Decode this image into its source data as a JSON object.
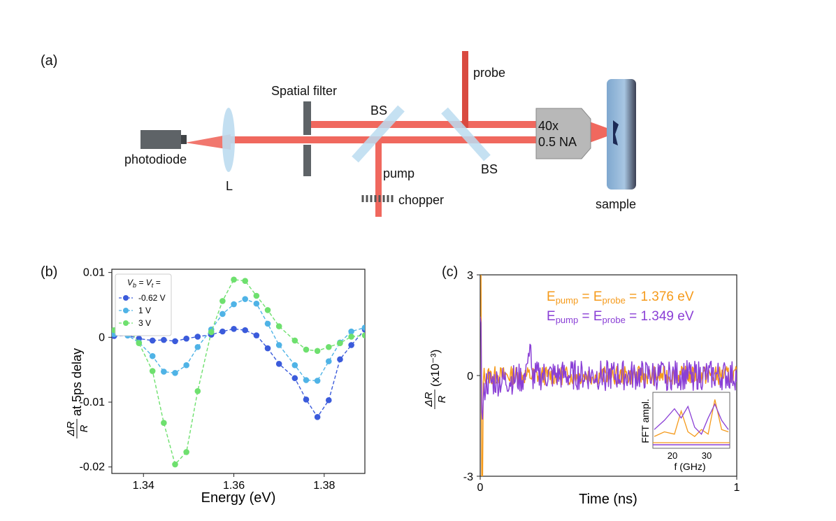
{
  "panel_a": {
    "label": "(a)",
    "photodiode": "photodiode",
    "lens": "L",
    "spatial_filter": "Spatial filter",
    "bs1": "BS",
    "bs2": "BS",
    "pump": "pump",
    "probe": "probe",
    "chopper": "chopper",
    "objective_line1": "40x",
    "objective_line2": "0.5 NA",
    "sample": "sample"
  },
  "colors": {
    "beam": "#f0685e",
    "beam_dark": "#d94a40",
    "optic": "#bcdcf0",
    "block": "#5e6367",
    "objective": "#b8b8b8",
    "orange": "#f59a1a",
    "purple": "#8a3fd6"
  },
  "chart_data": [
    {
      "panel": "(b)",
      "type": "line",
      "xlabel": "Energy (eV)",
      "ylabel_frac_num": "ΔR",
      "ylabel_frac_den": "R",
      "ylabel_rest": "at 5ps delay",
      "xlim": [
        1.333,
        1.389
      ],
      "ylim": [
        -0.021,
        0.0105
      ],
      "xticks": [
        1.34,
        1.36,
        1.38
      ],
      "xtick_labels": [
        "1.34",
        "1.36",
        "1.38"
      ],
      "yticks": [
        0.01,
        0,
        -0.01,
        -0.02
      ],
      "ytick_labels": [
        "0.01",
        "0",
        "-0.01",
        "-0.02"
      ],
      "legend_title": "V_b = V_t =",
      "legend_placement": "top-left",
      "x": [
        1.3335,
        1.3365,
        1.339,
        1.342,
        1.3445,
        1.347,
        1.3495,
        1.352,
        1.355,
        1.3575,
        1.36,
        1.3625,
        1.365,
        1.3675,
        1.37,
        1.3735,
        1.376,
        1.3785,
        1.381,
        1.3835,
        1.386,
        1.389
      ],
      "series": [
        {
          "name": "-0.62 V",
          "color": "#3b5bdb",
          "values": [
            0.0002,
            0.0003,
            -0.0002,
            -0.0005,
            -0.0004,
            -0.0006,
            -0.0002,
            0.0001,
            0.0004,
            0.0009,
            0.0013,
            0.0011,
            0.0003,
            -0.0017,
            -0.0041,
            -0.0063,
            -0.0096,
            -0.0123,
            -0.0097,
            -0.0034,
            -0.0012,
            0.0012
          ]
        },
        {
          "name": "1 V",
          "color": "#4fb3e6",
          "values": [
            0.0005,
            0.0003,
            -0.0008,
            -0.0029,
            -0.0053,
            -0.0055,
            -0.0043,
            -0.0015,
            0.0012,
            0.0036,
            0.0051,
            0.0059,
            0.0052,
            0.0021,
            -0.0012,
            -0.0043,
            -0.0066,
            -0.0067,
            -0.0037,
            -0.0008,
            0.0009,
            0.0015
          ]
        },
        {
          "name": "3 V",
          "color": "#6ee06e",
          "values": [
            0.0011,
            0.0015,
            -0.0009,
            -0.0052,
            -0.0132,
            -0.0196,
            -0.0177,
            -0.0083,
            0.0008,
            0.0056,
            0.0089,
            0.0087,
            0.0064,
            0.0042,
            0.0017,
            -0.0005,
            -0.0019,
            -0.0021,
            -0.0015,
            -0.0009,
            0.0001,
            0.0003
          ]
        }
      ]
    },
    {
      "panel": "(c)",
      "type": "line",
      "xlabel": "Time (ns)",
      "ylabel_frac_num": "ΔR",
      "ylabel_frac_den": "R",
      "ylabel_rest": "(x10⁻³)",
      "xlim": [
        0,
        1
      ],
      "ylim": [
        -3,
        3
      ],
      "xtick_labels": [
        "0",
        "1"
      ],
      "ytick_labels": [
        "3",
        "0",
        "-3"
      ],
      "series": [
        {
          "name": "E_pump = E_probe = 1.376 eV",
          "color": "#f59a1a",
          "noise_amp": 0.28
        },
        {
          "name": "E_pump = E_probe = 1.349 eV",
          "color": "#8a3fd6",
          "noise_amp": 0.45
        }
      ],
      "annotation_orange": {
        "main": "E",
        "sub1": "pump",
        "mid": " = E",
        "sub2": "probe",
        "tail": " = 1.376 eV"
      },
      "annotation_purple": {
        "main": "E",
        "sub1": "pump",
        "mid": " = E",
        "sub2": "probe",
        "tail": " = 1.349 eV"
      },
      "inset": {
        "ylabel": "FFT ampl.",
        "xlabel": "f (GHz)",
        "xtick_labels": [
          "20",
          "30"
        ],
        "x": [
          14,
          17,
          20,
          22,
          24,
          26,
          28,
          30,
          32,
          34,
          36
        ],
        "orange": [
          0.15,
          0.25,
          0.2,
          0.7,
          0.25,
          0.15,
          0.3,
          0.2,
          0.95,
          0.3,
          0.25
        ],
        "purple": [
          0.3,
          0.5,
          0.75,
          0.55,
          0.8,
          0.35,
          0.2,
          0.55,
          0.85,
          0.5,
          0.3
        ]
      }
    }
  ]
}
